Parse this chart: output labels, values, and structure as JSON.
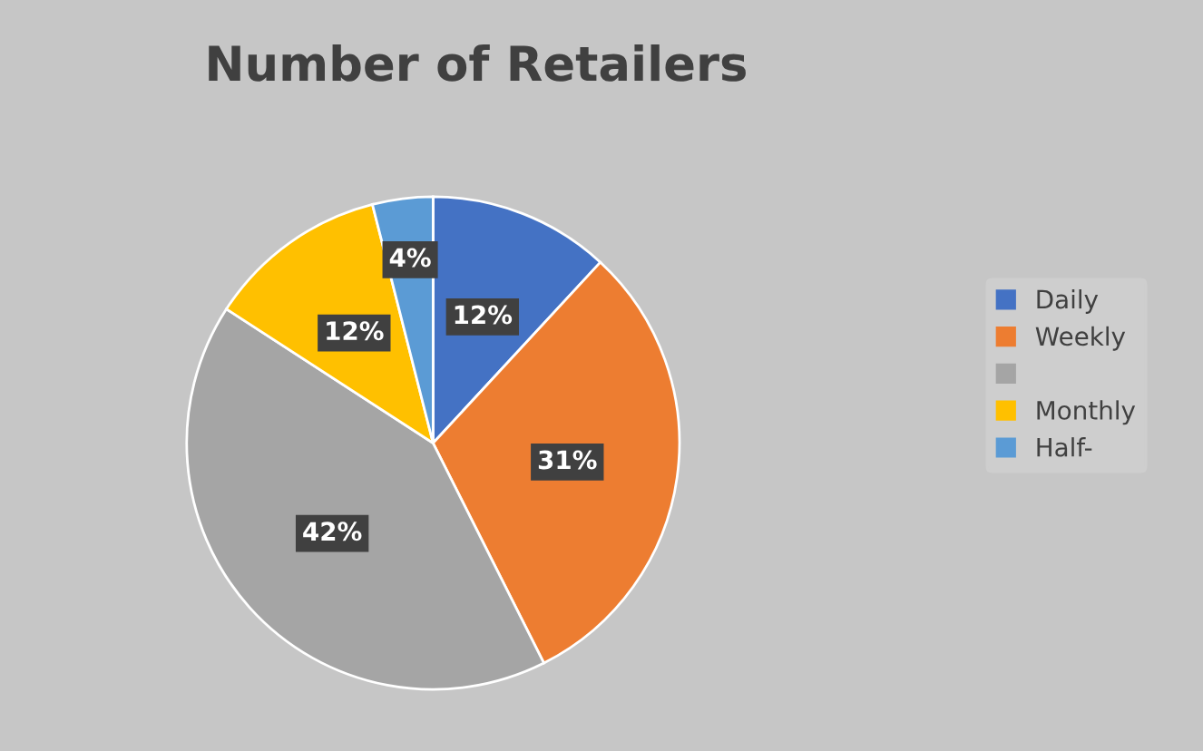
{
  "chart_data": {
    "type": "pie",
    "title": "Number of Retailers",
    "categories": [
      "Daily",
      "Weekly",
      null,
      "Monthly",
      "Half-"
    ],
    "values": [
      12,
      31,
      42,
      12,
      4
    ],
    "value_labels": [
      "12%",
      "31%",
      "42%",
      "12%",
      "4%"
    ],
    "colors": [
      "#4472c4",
      "#ed7d31",
      "#a5a5a5",
      "#ffc000",
      "#5b9bd5"
    ],
    "legend": "right"
  }
}
